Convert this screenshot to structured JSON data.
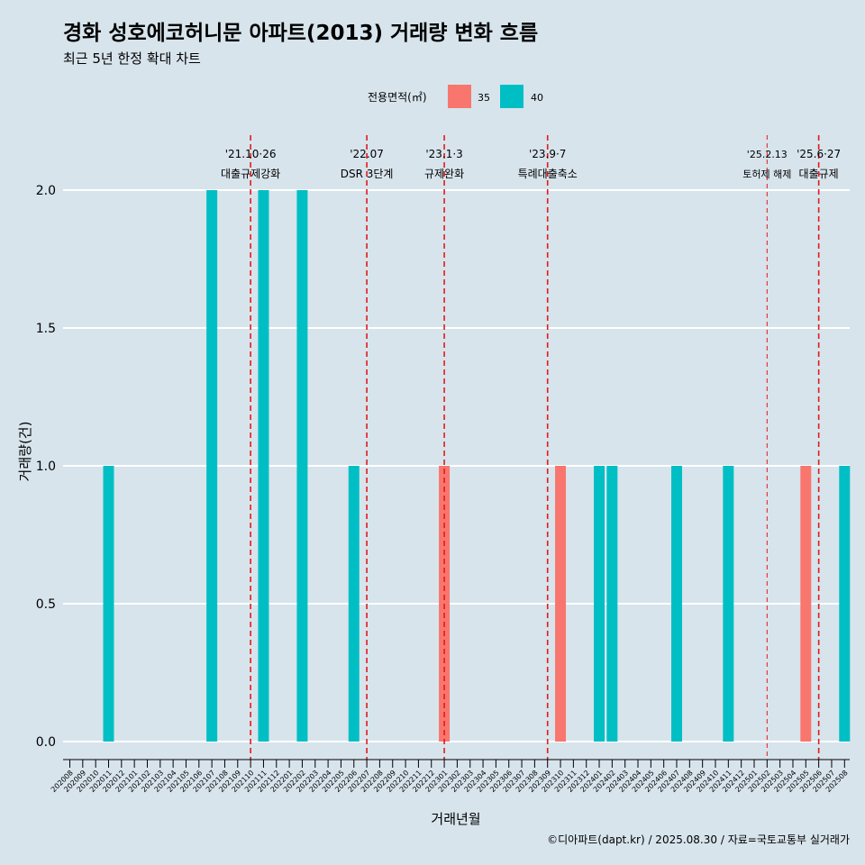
{
  "colors": {
    "background": "#d7e4ec",
    "series_35": "#f8766d",
    "series_40": "#00bfc4",
    "event_line": "#e41a1c",
    "grid": "#ffffff"
  },
  "chart_data": {
    "type": "bar",
    "title": "경화 성호에코허니문 아파트(2013) 거래량 변화 흐름",
    "subtitle": "최근 5년 한정 확대 차트",
    "xlabel": "거래년월",
    "ylabel": "거래량(건)",
    "caption": "©디아파트(dapt.kr) / 2025.08.30 / 자료=국토교통부 실거래가",
    "legend": {
      "title": "전용면적(㎡)",
      "position": "top"
    },
    "ylim": [
      0,
      2
    ],
    "yticks": [
      "0.0",
      "0.5",
      "1.0",
      "1.5",
      "2.0"
    ],
    "grid": true,
    "categories": [
      "202008",
      "202009",
      "202010",
      "202011",
      "202012",
      "202101",
      "202102",
      "202103",
      "202104",
      "202105",
      "202106",
      "202107",
      "202108",
      "202109",
      "202110",
      "202111",
      "202112",
      "202201",
      "202202",
      "202203",
      "202204",
      "202205",
      "202206",
      "202207",
      "202208",
      "202209",
      "202210",
      "202211",
      "202212",
      "202301",
      "202302",
      "202303",
      "202304",
      "202305",
      "202306",
      "202307",
      "202308",
      "202309",
      "202310",
      "202311",
      "202312",
      "202401",
      "202402",
      "202403",
      "202404",
      "202405",
      "202406",
      "202407",
      "202408",
      "202409",
      "202410",
      "202411",
      "202412",
      "202501",
      "202502",
      "202503",
      "202504",
      "202505",
      "202506",
      "202507",
      "202508"
    ],
    "series": [
      {
        "name": "35",
        "color": "#f8766d",
        "values": [
          0,
          0,
          0,
          0,
          0,
          0,
          0,
          0,
          0,
          0,
          0,
          0,
          0,
          0,
          0,
          0,
          0,
          0,
          0,
          0,
          0,
          0,
          0,
          0,
          0,
          0,
          0,
          0,
          0,
          1,
          0,
          0,
          0,
          0,
          0,
          0,
          0,
          0,
          1,
          0,
          0,
          0,
          0,
          0,
          0,
          0,
          0,
          0,
          0,
          0,
          0,
          0,
          0,
          0,
          0,
          0,
          0,
          1,
          0,
          0,
          0
        ]
      },
      {
        "name": "40",
        "color": "#00bfc4",
        "values": [
          0,
          0,
          0,
          1,
          0,
          0,
          0,
          0,
          0,
          0,
          0,
          2,
          0,
          0,
          0,
          2,
          0,
          0,
          2,
          0,
          0,
          0,
          1,
          0,
          0,
          0,
          0,
          0,
          0,
          0,
          0,
          0,
          0,
          0,
          0,
          0,
          0,
          0,
          0,
          0,
          0,
          1,
          1,
          0,
          0,
          0,
          0,
          1,
          0,
          0,
          0,
          1,
          0,
          0,
          0,
          0,
          0,
          0,
          0,
          0,
          1
        ]
      }
    ],
    "events": [
      {
        "month": "202110",
        "date": "'21.10·26",
        "label": "대출규제강화",
        "style": "dashed"
      },
      {
        "month": "202207",
        "date": "'22.07",
        "label": "DSR 3단계",
        "style": "dashed"
      },
      {
        "month": "202301",
        "date": "'23.1·3",
        "label": "규제완화",
        "style": "dashed"
      },
      {
        "month": "202309",
        "date": "'23.9·7",
        "label": "특례대출축소",
        "style": "dashed"
      },
      {
        "month": "202502",
        "date": "'25.2.13",
        "label": "토허제 해제",
        "style": "thin"
      },
      {
        "month": "202506",
        "date": "'25.6·27",
        "label": "대출규제",
        "style": "dashed"
      }
    ]
  }
}
